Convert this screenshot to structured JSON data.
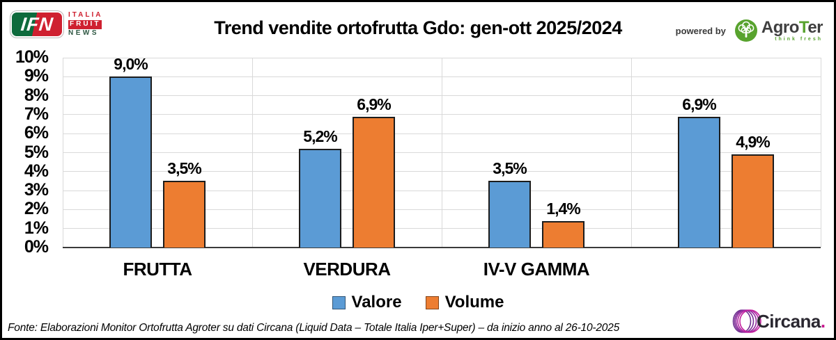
{
  "chart_data": {
    "type": "bar",
    "title": "Trend vendite ortofrutta Gdo: gen-ott 2025/2024",
    "categories": [
      "FRUTTA",
      "VERDURA",
      "IV-V GAMMA",
      ""
    ],
    "series": [
      {
        "name": "Valore",
        "color": "#5B9BD5",
        "values": [
          9.0,
          5.2,
          3.5,
          6.9
        ]
      },
      {
        "name": "Volume",
        "color": "#ED7D31",
        "values": [
          3.5,
          6.9,
          1.4,
          4.9
        ]
      }
    ],
    "value_labels": [
      [
        "9,0%",
        "5,2%",
        "3,5%",
        "6,9%"
      ],
      [
        "3,5%",
        "6,9%",
        "1,4%",
        "4,9%"
      ]
    ],
    "ylim": [
      0,
      10
    ],
    "ytick_labels": [
      "0%",
      "1%",
      "2%",
      "3%",
      "4%",
      "5%",
      "6%",
      "7%",
      "8%",
      "9%",
      "10%"
    ],
    "grid": true,
    "legend_position": "bottom",
    "grid_color": "#D9D9D9",
    "axis_color": "#3a3a3a",
    "bar_border_color": "#1c1c1c"
  },
  "logos": {
    "ifn": {
      "abbr": "IFN",
      "line1": "ITALIA",
      "line2": "FRUIT",
      "line3": "NEWS"
    },
    "powered_by": "powered by",
    "agroter": {
      "part1": "Agro",
      "part2": "T",
      "part3": "er",
      "tagline": "think fresh"
    },
    "circana": {
      "text": "Circana",
      "dot": "."
    }
  },
  "footer": {
    "source": "Fonte: Elaborazioni Monitor Ortofrutta Agroter su dati Circana (Liquid Data – Totale Italia Iper+Super) –  da inizio anno al 26-10-2025"
  }
}
